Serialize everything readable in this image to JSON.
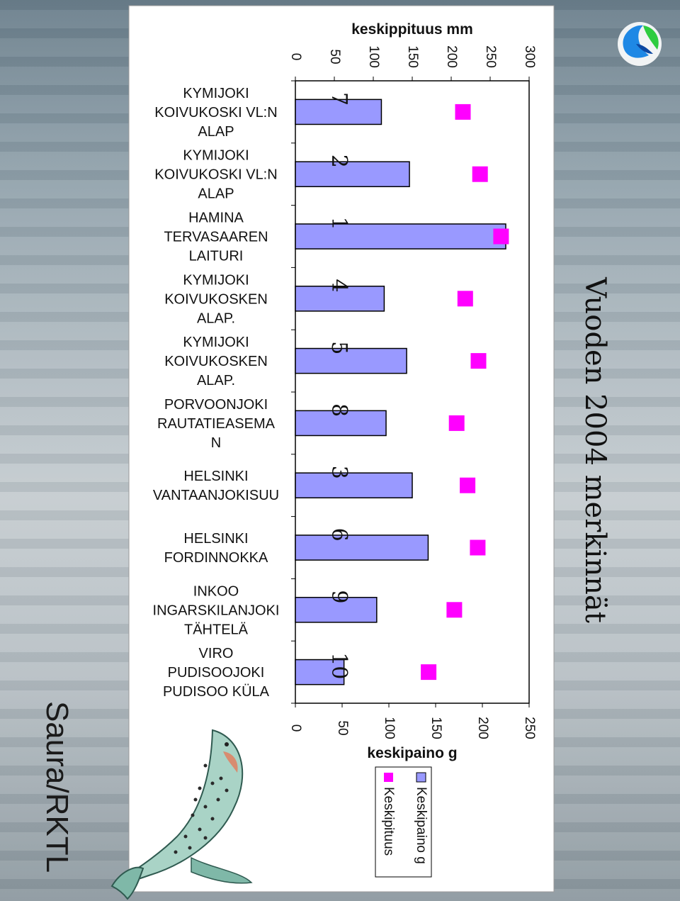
{
  "brand": "Saura/RKTL",
  "page_title": "Vuoden  2004 merkinnät",
  "colors": {
    "bar_fill": "#9999ff",
    "marker_fill": "#ff00ff",
    "panel_bg": "#ffffff",
    "axis": "#000000"
  },
  "icons": [
    "logo-icon",
    "salmon-illustration"
  ],
  "chart_data": {
    "type": "bar",
    "orientation": "rotated-90",
    "categories": [
      "KYMIJOKI KOIVUKOSKI VL:N ALAP",
      "KYMIJOKI KOIVUKOSKI VL:N ALAP",
      "HAMINA TERVASAAREN LAITURI",
      "KYMIJOKI KOIVUKOSKEN ALAP.",
      "KYMIJOKI KOIVUKOSKEN ALAP.",
      "PORVOONJOKI RAUTATIEASEMA N",
      "HELSINKI VANTAANJOKISUU",
      "HELSINKI FORDINNOKKA",
      "INKOO INGARSKILANJOKI TÄHTELÄ",
      "VIRO PUDISOOJOKI PUDISOO KÜLA"
    ],
    "category_label_lines": [
      [
        "KYMIJOKI",
        "KOIVUKOSKI VL:N",
        "ALAP"
      ],
      [
        "KYMIJOKI",
        "KOIVUKOSKI VL:N",
        "ALAP"
      ],
      [
        "HAMINA",
        "TERVASAAREN",
        "LAITURI"
      ],
      [
        "KYMIJOKI",
        "KOIVUKOSKEN",
        "ALAP."
      ],
      [
        "KYMIJOKI",
        "KOIVUKOSKEN",
        "ALAP."
      ],
      [
        "PORVOONJOKI",
        "RAUTATIEASEMA",
        "N"
      ],
      [
        "HELSINKI",
        "VANTAANJOKISUU"
      ],
      [
        "HELSINKI",
        "FORDINNOKKA"
      ],
      [
        "INKOO",
        "INGARSKILANJOKI",
        "TÄHTELÄ"
      ],
      [
        "VIRO",
        "PUDISOOJOKI",
        "PUDISOO KÜLA"
      ]
    ],
    "data_labels": [
      "7",
      "2",
      "1",
      "4",
      "5",
      "8",
      "3",
      "6",
      "9",
      "10"
    ],
    "series": [
      {
        "name": "Keskipaino g",
        "type": "bar",
        "axis": "keskipaino g",
        "values": [
          92,
          122,
          225,
          95,
          119,
          97,
          125,
          142,
          87,
          52
        ]
      },
      {
        "name": "Keskipituus",
        "type": "marker",
        "axis": "keskippituus mm",
        "values": [
          215,
          237,
          264,
          218,
          235,
          207,
          221,
          234,
          204,
          171
        ]
      }
    ],
    "weight_axis": {
      "label": "keskipaino g",
      "ticks": [
        "0",
        "50",
        "100",
        "150",
        "200",
        "250"
      ],
      "lim": [
        0,
        250
      ]
    },
    "length_axis": {
      "label": "keskippituus mm",
      "ticks": [
        "0",
        "50",
        "100",
        "150",
        "200",
        "250",
        "300"
      ],
      "lim": [
        0,
        300
      ]
    },
    "legend_position": "bottom"
  }
}
